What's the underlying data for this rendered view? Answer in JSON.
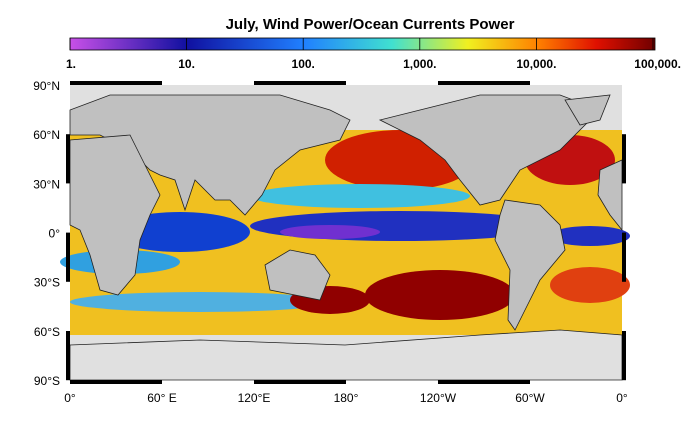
{
  "title": "July, Wind Power/Ocean Currents Power",
  "colorbar": {
    "ticks": [
      {
        "value": 1,
        "label": "1."
      },
      {
        "value": 10,
        "label": "10."
      },
      {
        "value": 100,
        "label": "100."
      },
      {
        "value": 1000,
        "label": "1,000."
      },
      {
        "value": 10000,
        "label": "10,000."
      },
      {
        "value": 100000,
        "label": "100,000."
      }
    ],
    "log_scale": true
  },
  "map": {
    "lat_labels": [
      "90°N",
      "60°N",
      "30°N",
      "0°",
      "30°S",
      "60°S",
      "90°S"
    ],
    "lon_labels": [
      "0°",
      "60° E",
      "120°E",
      "180°",
      "120°W",
      "60°W",
      "0°"
    ]
  }
}
